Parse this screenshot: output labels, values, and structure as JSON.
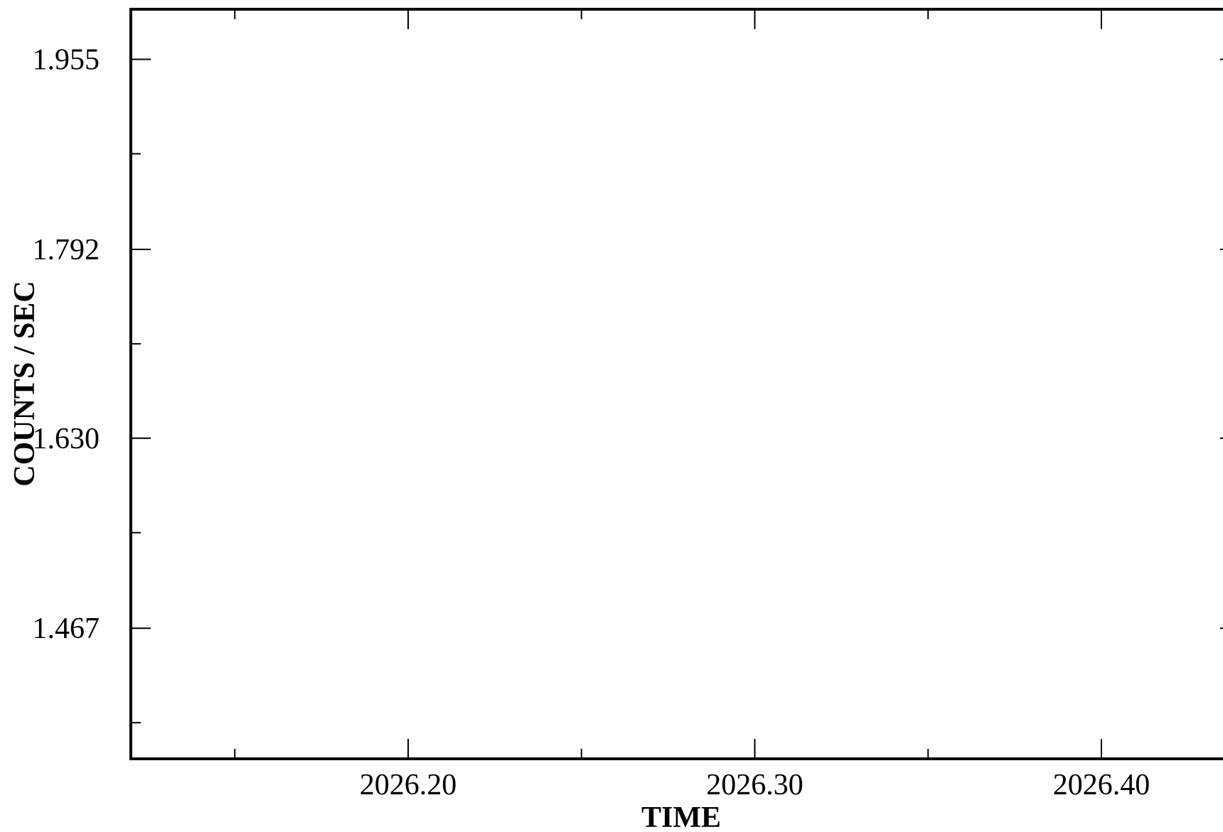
{
  "chart_data": {
    "type": "line",
    "title": "",
    "xlabel": "TIME",
    "ylabel": "COUNTS / SEC",
    "xlim": [
      2026.12,
      2026.44
    ],
    "ylim": [
      1.355,
      1.998
    ],
    "x_major_ticks": [
      2026.2,
      2026.3,
      2026.4
    ],
    "x_tick_labels": [
      "2026.20",
      "2026.30",
      "2026.40"
    ],
    "x_minor_ticks": [
      2026.15,
      2026.25,
      2026.35
    ],
    "y_major_ticks": [
      1.467,
      1.63,
      1.792,
      1.955
    ],
    "y_tick_labels": [
      "1.467",
      "1.630",
      "1.792",
      "1.955"
    ],
    "y_minor_ticks": [
      1.386,
      1.549,
      1.711,
      1.874
    ],
    "grid": false,
    "series": []
  }
}
